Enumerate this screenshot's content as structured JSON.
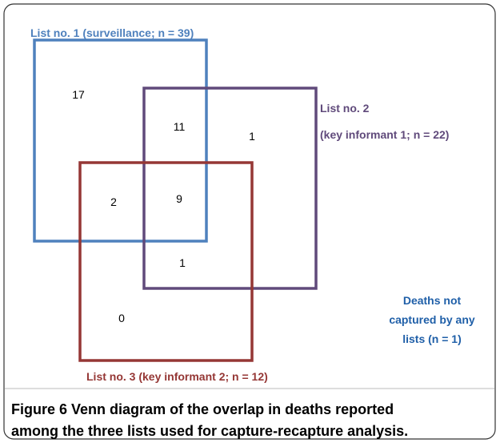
{
  "sets": [
    {
      "lines": [
        "List no. 1 (surveillance; n = 39)"
      ]
    },
    {
      "lines": [
        "List no. 2",
        "(key informant 1; n = 22)"
      ]
    },
    {
      "lines": [
        "List no. 3 (key informant 2; n = 12)"
      ]
    }
  ],
  "regions": [
    {
      "label": 17
    },
    {
      "label": 11
    },
    {
      "label": 1
    },
    {
      "label": 2
    },
    {
      "label": 9
    },
    {
      "label": 1
    },
    {
      "label": 0
    }
  ],
  "note": {
    "lines": [
      "Deaths not",
      "captured by any",
      "lists (n = 1)"
    ]
  },
  "caption": {
    "label": "Figure 6",
    "lines": [
      "Venn diagram of the overlap in deaths reported",
      "among the three lists used for capture-recapture analysis."
    ]
  }
}
